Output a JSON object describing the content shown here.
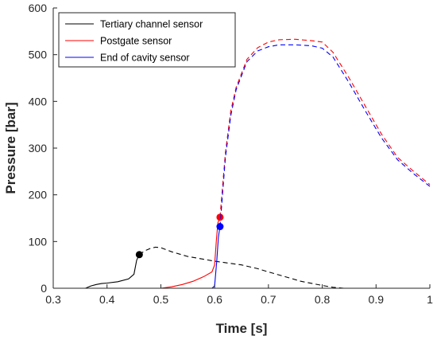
{
  "chart_data": {
    "type": "line",
    "title": "",
    "xlabel": "Time [s]",
    "ylabel": "Pressure [bar]",
    "xlim": [
      0.3,
      1.0
    ],
    "ylim": [
      0,
      600
    ],
    "xticks": [
      0.3,
      0.4,
      0.5,
      0.6,
      0.7,
      0.8,
      0.9,
      1.0
    ],
    "xtick_labels": [
      "0.3",
      "0.4",
      "0.5",
      "0.6",
      "0.7",
      "0.8",
      "0.9",
      "1"
    ],
    "yticks": [
      0,
      100,
      200,
      300,
      400,
      500,
      600
    ],
    "ytick_labels": [
      "0",
      "100",
      "200",
      "300",
      "400",
      "500",
      "600"
    ],
    "grid": false,
    "legend_position": "top-left",
    "series": [
      {
        "name": "Tertiary channel sensor",
        "color": "#000000",
        "solid": [
          [
            0.3,
            0
          ],
          [
            0.36,
            0
          ],
          [
            0.37,
            5
          ],
          [
            0.38,
            8
          ],
          [
            0.39,
            10
          ],
          [
            0.4,
            11
          ],
          [
            0.42,
            14
          ],
          [
            0.44,
            20
          ],
          [
            0.45,
            30
          ],
          [
            0.455,
            60
          ],
          [
            0.46,
            72
          ]
        ],
        "dashed": [
          [
            0.46,
            72
          ],
          [
            0.47,
            80
          ],
          [
            0.48,
            85
          ],
          [
            0.49,
            88
          ],
          [
            0.5,
            87
          ],
          [
            0.52,
            78
          ],
          [
            0.55,
            68
          ],
          [
            0.6,
            58
          ],
          [
            0.65,
            50
          ],
          [
            0.68,
            42
          ],
          [
            0.7,
            35
          ],
          [
            0.73,
            25
          ],
          [
            0.76,
            15
          ],
          [
            0.8,
            6
          ],
          [
            0.82,
            2
          ],
          [
            0.84,
            0
          ],
          [
            1.0,
            0
          ]
        ],
        "marker": [
          0.46,
          72
        ]
      },
      {
        "name": "Postgate sensor",
        "color": "#ff0000",
        "solid": [
          [
            0.3,
            0
          ],
          [
            0.5,
            0
          ],
          [
            0.52,
            3
          ],
          [
            0.54,
            8
          ],
          [
            0.56,
            15
          ],
          [
            0.58,
            25
          ],
          [
            0.595,
            35
          ],
          [
            0.6,
            50
          ],
          [
            0.603,
            100
          ],
          [
            0.606,
            140
          ],
          [
            0.61,
            152
          ]
        ],
        "dashed": [
          [
            0.61,
            152
          ],
          [
            0.62,
            290
          ],
          [
            0.63,
            380
          ],
          [
            0.64,
            430
          ],
          [
            0.66,
            490
          ],
          [
            0.68,
            515
          ],
          [
            0.7,
            527
          ],
          [
            0.72,
            532
          ],
          [
            0.75,
            533
          ],
          [
            0.78,
            530
          ],
          [
            0.8,
            527
          ],
          [
            0.82,
            505
          ],
          [
            0.85,
            450
          ],
          [
            0.88,
            390
          ],
          [
            0.91,
            330
          ],
          [
            0.94,
            280
          ],
          [
            0.97,
            250
          ],
          [
            1.0,
            222
          ]
        ],
        "marker": [
          0.61,
          152
        ]
      },
      {
        "name": "End of cavity sensor",
        "color": "#0000ff",
        "solid": [
          [
            0.3,
            0
          ],
          [
            0.595,
            0
          ],
          [
            0.6,
            5
          ],
          [
            0.604,
            60
          ],
          [
            0.607,
            110
          ],
          [
            0.61,
            132
          ]
        ],
        "dashed": [
          [
            0.61,
            132
          ],
          [
            0.62,
            280
          ],
          [
            0.63,
            370
          ],
          [
            0.64,
            425
          ],
          [
            0.66,
            485
          ],
          [
            0.68,
            508
          ],
          [
            0.7,
            517
          ],
          [
            0.72,
            521
          ],
          [
            0.75,
            521
          ],
          [
            0.78,
            519
          ],
          [
            0.8,
            514
          ],
          [
            0.82,
            495
          ],
          [
            0.85,
            440
          ],
          [
            0.88,
            380
          ],
          [
            0.91,
            322
          ],
          [
            0.94,
            275
          ],
          [
            0.97,
            245
          ],
          [
            1.0,
            218
          ]
        ],
        "marker": [
          0.61,
          132
        ]
      }
    ]
  }
}
